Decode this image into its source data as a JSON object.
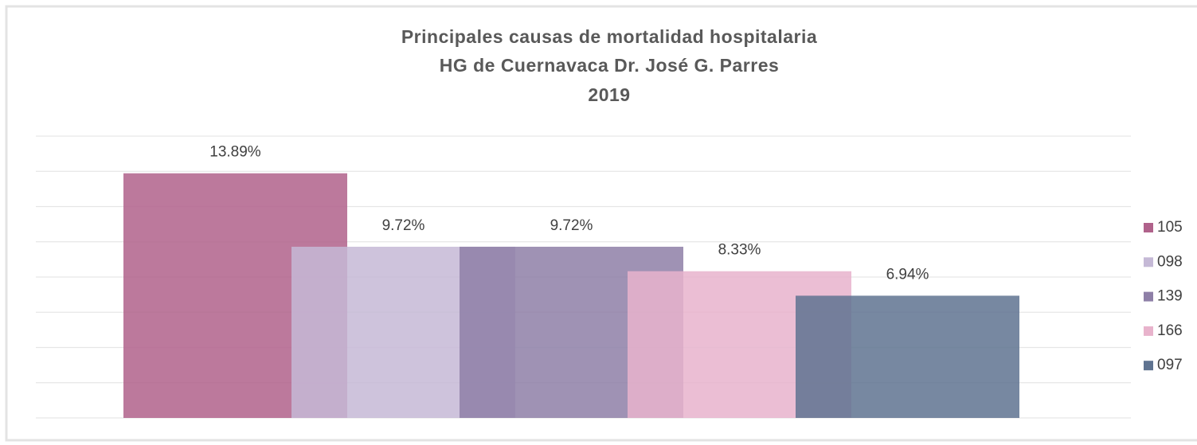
{
  "chart_data": {
    "type": "bar",
    "title": [
      "Principales causas de mortalidad hospitalaria",
      "HG de Cuernavaca Dr. José G. Parres",
      "2019"
    ],
    "series": [
      {
        "name": "105",
        "color": "#b0628b",
        "values": [
          13.89
        ],
        "value_labels": [
          "13.89%"
        ]
      },
      {
        "name": "098",
        "color": "#c5b9d6",
        "values": [
          9.72
        ],
        "value_labels": [
          "9.72%"
        ]
      },
      {
        "name": "139",
        "color": "#8e7fa7",
        "values": [
          9.72
        ],
        "value_labels": [
          "9.72%"
        ]
      },
      {
        "name": "166",
        "color": "#e8b3cc",
        "values": [
          8.33
        ],
        "value_labels": [
          "8.33%"
        ]
      },
      {
        "name": "097",
        "color": "#5f7390",
        "values": [
          6.94
        ],
        "value_labels": [
          "6.94%"
        ]
      }
    ],
    "ylim": [
      0,
      16
    ],
    "yticks": [
      0,
      2,
      4,
      6,
      8,
      10,
      12,
      14,
      16
    ],
    "grid": true,
    "legend": "right"
  }
}
